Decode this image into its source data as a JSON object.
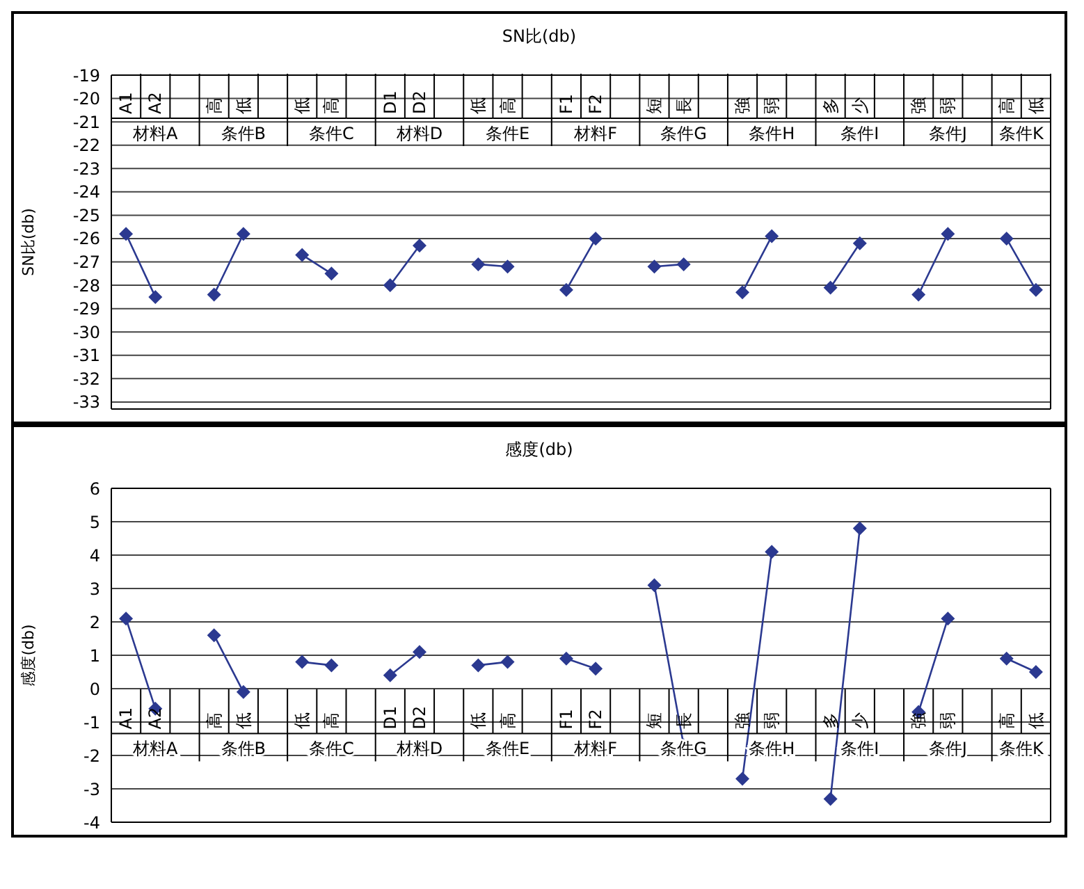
{
  "chart_data": [
    {
      "type": "line",
      "title": "SN比(db)",
      "ylabel": "SN比(db)",
      "categories": [
        "A1",
        "A2",
        null,
        "高",
        "低",
        null,
        "低",
        "高",
        null,
        "D1",
        "D2",
        null,
        "低",
        "高",
        null,
        "F1",
        "F2",
        null,
        "短",
        "長",
        null,
        "強",
        "弱",
        null,
        "多",
        "少",
        null,
        "強",
        "弱",
        null,
        "高",
        "低"
      ],
      "series": [
        {
          "color": "#2b3990",
          "values": [
            -25.8,
            -28.5,
            null,
            -28.4,
            -25.8,
            null,
            -26.7,
            -27.5,
            null,
            -28.0,
            -26.3,
            null,
            -27.1,
            -27.2,
            null,
            -28.2,
            -26.0,
            null,
            -27.2,
            -27.1,
            null,
            -28.3,
            -25.9,
            null,
            -28.1,
            -26.2,
            null,
            -28.4,
            -25.8,
            null,
            -26.0,
            -28.2
          ]
        }
      ],
      "ylim": [
        -33.3,
        -19
      ],
      "yticks": [
        -19,
        -20,
        -21,
        -22,
        -23,
        -24,
        -25,
        -26,
        -27,
        -28,
        -29,
        -30,
        -31,
        -32,
        -33
      ],
      "grid": "y",
      "marker": "diamond",
      "annotations": [
        "材料A",
        "条件B",
        "条件C",
        "材料D",
        "条件E",
        "材料F",
        "条件G",
        "条件H",
        "条件I",
        "条件J",
        "条件K"
      ]
    },
    {
      "type": "line",
      "title": "感度(db)",
      "ylabel": "感度(db)",
      "categories": [
        "A1",
        "A2",
        null,
        "高",
        "低",
        null,
        "低",
        "高",
        null,
        "D1",
        "D2",
        null,
        "低",
        "高",
        null,
        "F1",
        "F2",
        null,
        "短",
        "長",
        null,
        "強",
        "弱",
        null,
        "多",
        "少",
        null,
        "強",
        "弱",
        null,
        "高",
        "低"
      ],
      "series": [
        {
          "color": "#2b3990",
          "values": [
            2.1,
            -0.6,
            null,
            1.6,
            -0.1,
            null,
            0.8,
            0.7,
            null,
            0.4,
            1.1,
            null,
            0.7,
            0.8,
            null,
            0.9,
            0.6,
            null,
            3.1,
            -1.7,
            null,
            -2.7,
            4.1,
            null,
            -3.3,
            4.8,
            null,
            -0.7,
            2.1,
            null,
            0.9,
            0.5
          ]
        }
      ],
      "ylim": [
        -4,
        6
      ],
      "yticks": [
        -4,
        -3,
        -2,
        -1,
        0,
        1,
        2,
        3,
        4,
        5,
        6
      ],
      "grid": "y",
      "marker": "diamond",
      "annotations": [
        "材料A",
        "条件B",
        "条件C",
        "材料D",
        "条件E",
        "材料F",
        "条件G",
        "条件H",
        "条件I",
        "条件J",
        "条件K"
      ]
    }
  ]
}
